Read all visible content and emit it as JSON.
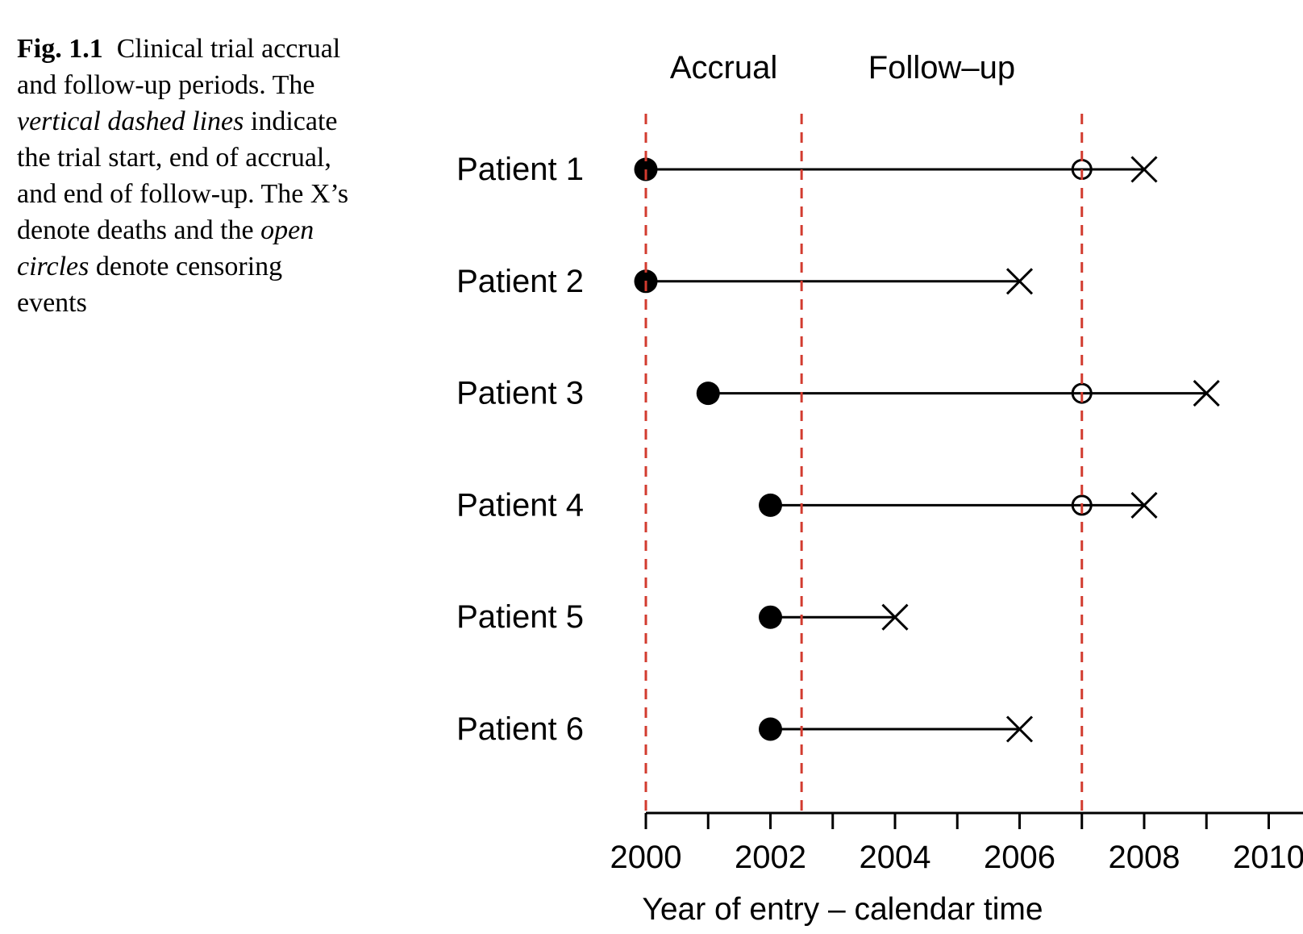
{
  "figure": {
    "caption_lines": [
      {
        "runs": [
          {
            "text": "Fig. 1.1",
            "bold": true
          },
          {
            "text": "  Clinical trial accrual"
          }
        ]
      },
      {
        "runs": [
          {
            "text": "and follow-up periods. The"
          }
        ]
      },
      {
        "runs": [
          {
            "text": "vertical dashed lines",
            "italic": true
          },
          {
            "text": " indicate"
          }
        ]
      },
      {
        "runs": [
          {
            "text": "the trial start, end of accrual,"
          }
        ]
      },
      {
        "runs": [
          {
            "text": "and end of follow-up. The X’s"
          }
        ]
      },
      {
        "runs": [
          {
            "text": "denote deaths and the "
          },
          {
            "text": "open",
            "italic": true
          }
        ]
      },
      {
        "runs": [
          {
            "text": "circles",
            "italic": true
          },
          {
            "text": " denote censoring"
          }
        ]
      },
      {
        "runs": [
          {
            "text": "events"
          }
        ]
      }
    ]
  },
  "chart_data": {
    "type": "timeline",
    "region_labels": [
      {
        "label": "Accrual",
        "x_center_year": 2001.25
      },
      {
        "label": "Follow–up",
        "x_center_year": 2004.75
      }
    ],
    "dashed_vlines": {
      "years": [
        2000,
        2002.5,
        2007
      ],
      "color": "#d23b2f"
    },
    "patients": [
      {
        "label": "Patient 1",
        "entry_year": 2000,
        "censor_year": 2007,
        "death_year": 2008
      },
      {
        "label": "Patient 2",
        "entry_year": 2000,
        "censor_year": null,
        "death_year": 2006
      },
      {
        "label": "Patient 3",
        "entry_year": 2001,
        "censor_year": 2007,
        "death_year": 2009
      },
      {
        "label": "Patient 4",
        "entry_year": 2002,
        "censor_year": 2007,
        "death_year": 2008
      },
      {
        "label": "Patient 5",
        "entry_year": 2002,
        "censor_year": null,
        "death_year": 2004
      },
      {
        "label": "Patient 6",
        "entry_year": 2002,
        "censor_year": null,
        "death_year": 2006
      }
    ],
    "markers": {
      "entry": "filled-circle",
      "death": "X",
      "censoring": "open-circle"
    },
    "x_axis": {
      "label": "Year of entry – calendar time",
      "tick_years": [
        2000,
        2001,
        2002,
        2003,
        2004,
        2005,
        2006,
        2007,
        2008,
        2009,
        2010
      ],
      "labeled_years": [
        2000,
        2002,
        2004,
        2006,
        2008,
        2010
      ],
      "range_shown": [
        2000,
        2010.5
      ]
    }
  }
}
